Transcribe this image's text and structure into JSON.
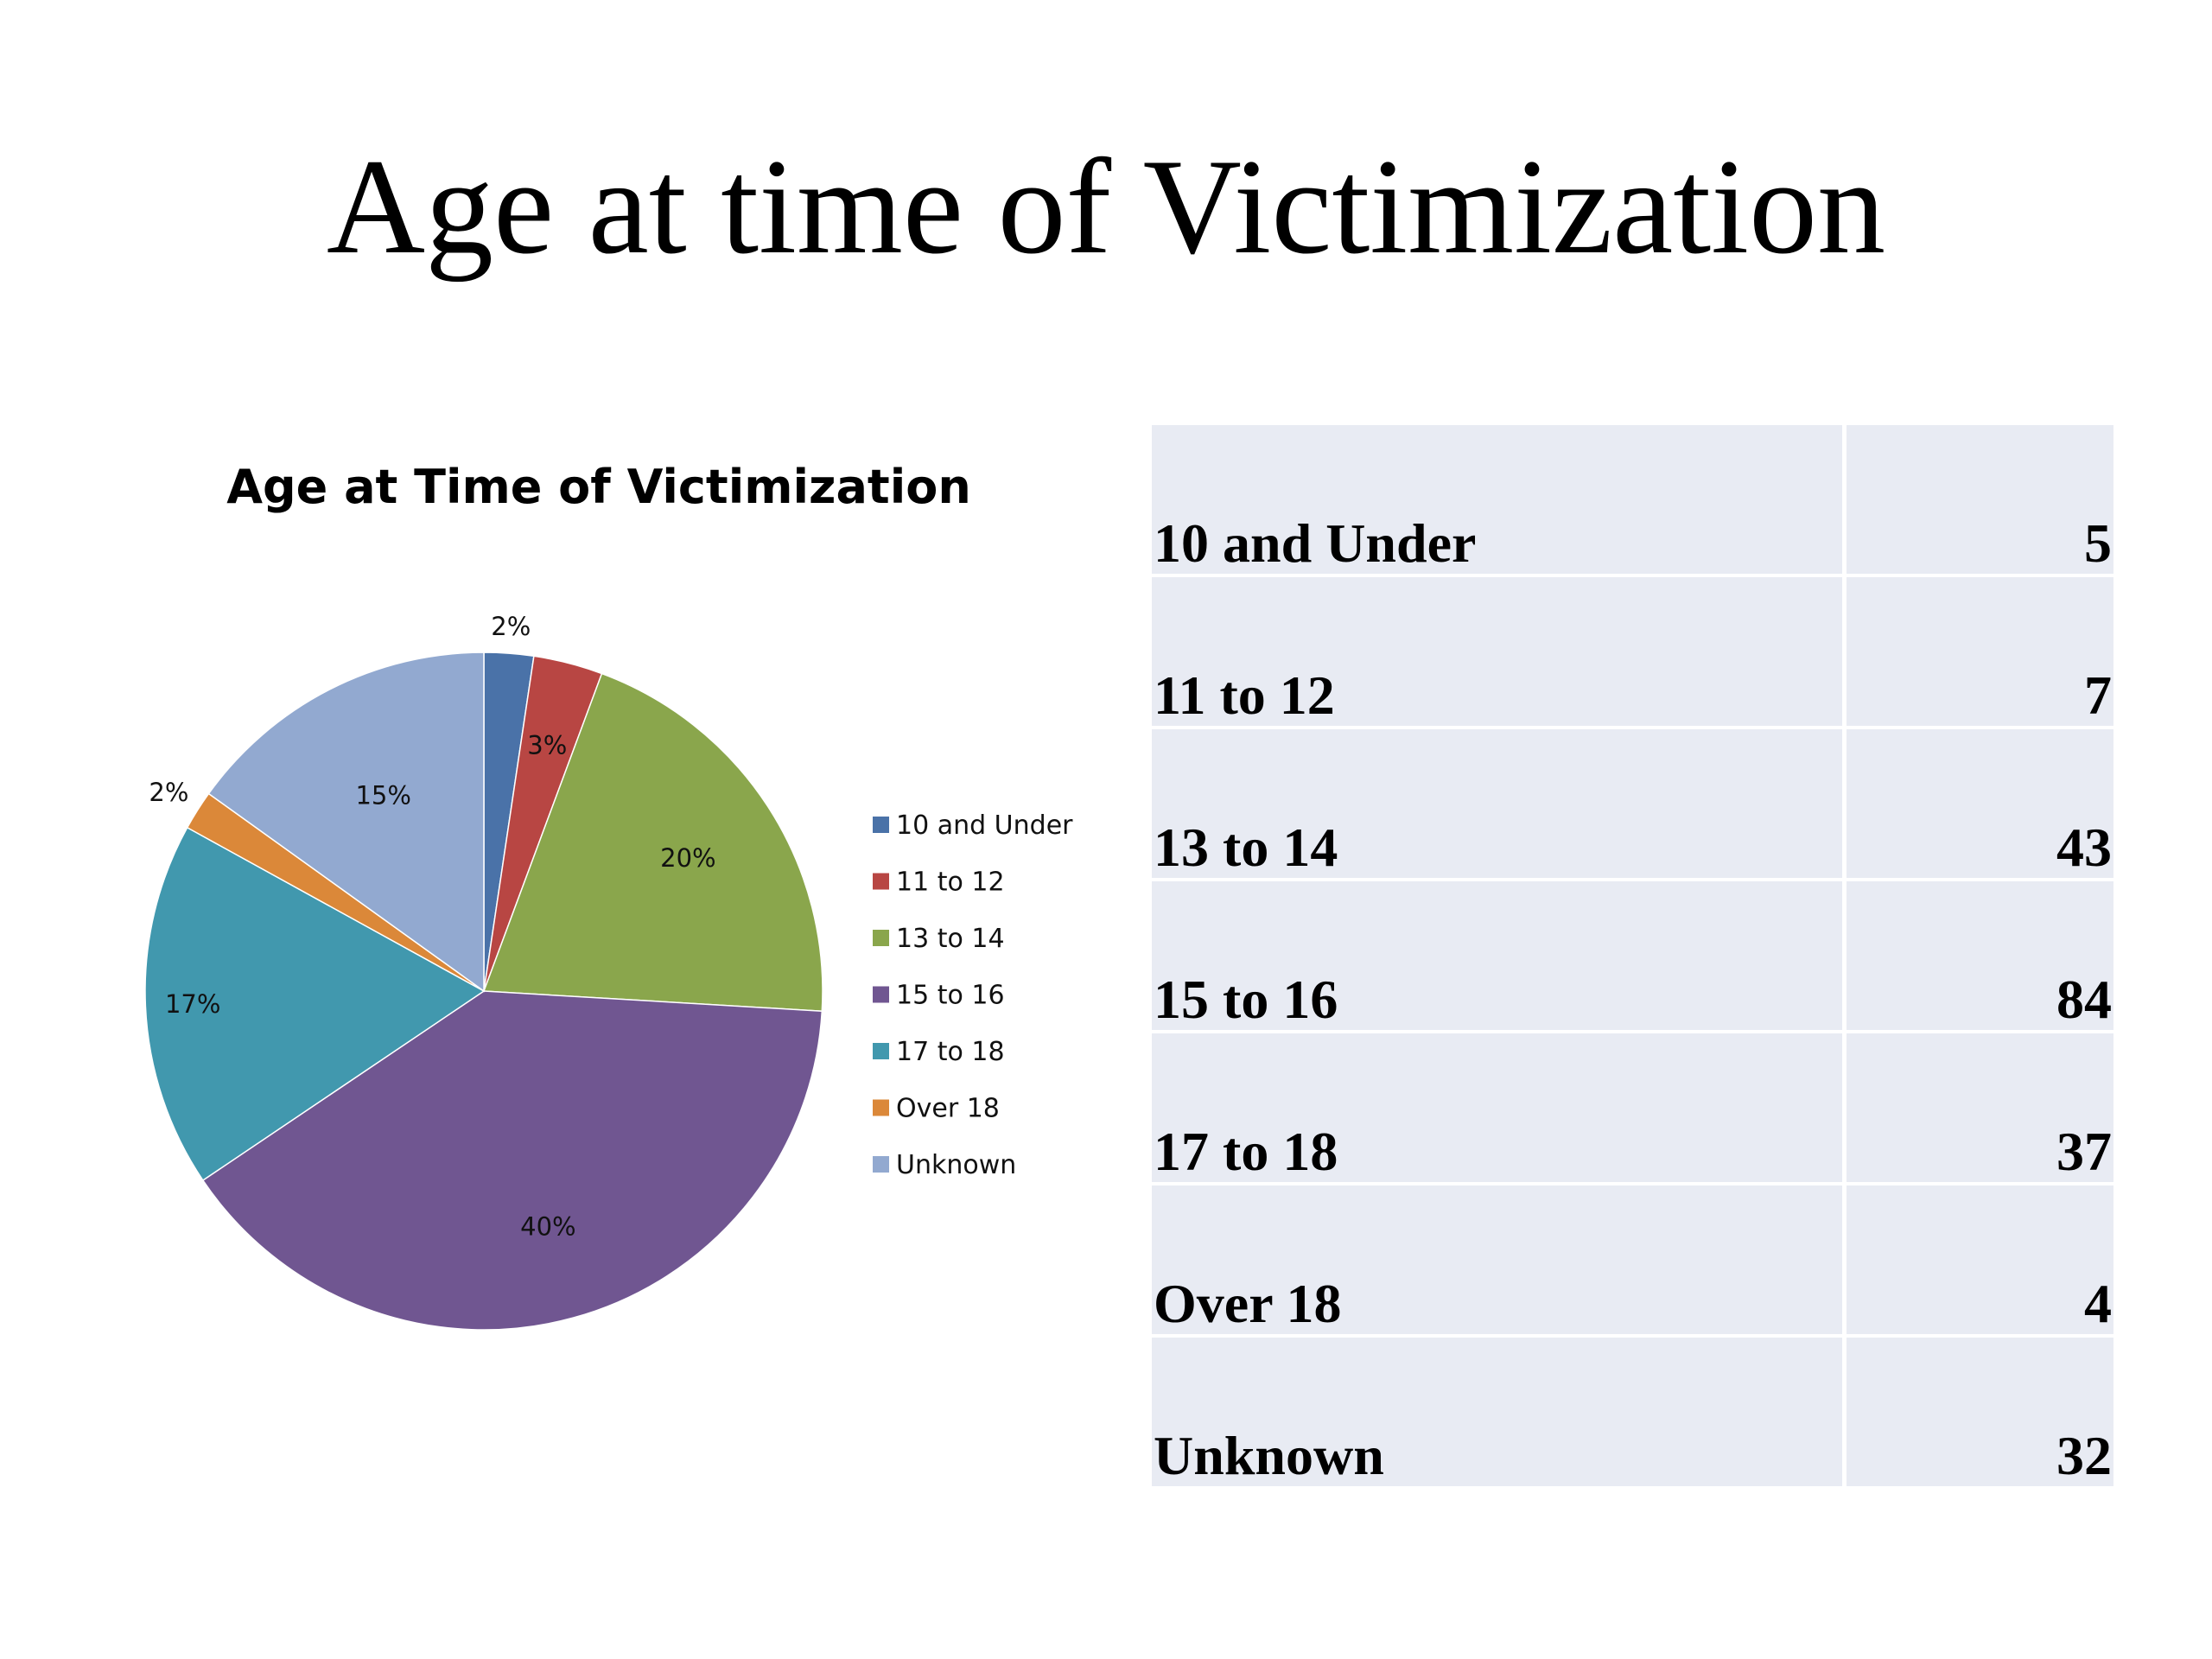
{
  "slide": {
    "title": "Age at time of Victimization"
  },
  "chart_data": {
    "type": "pie",
    "title": "Age at Time of Victimization",
    "legend_position": "right",
    "categories": [
      "10 and Under",
      "11 to 12",
      "13 to 14",
      "15 to 16",
      "17 to 18",
      "Over 18",
      "Unknown"
    ],
    "values": [
      5,
      7,
      43,
      84,
      37,
      4,
      32
    ],
    "percent_labels": [
      "2%",
      "3%",
      "20%",
      "40%",
      "17%",
      "2%",
      "15%"
    ],
    "colors": [
      "#4a72a8",
      "#b84643",
      "#8aa64c",
      "#705691",
      "#4198ae",
      "#db8839",
      "#92a9d0"
    ]
  },
  "table": {
    "rows": [
      {
        "label": "10 and Under",
        "value": "5"
      },
      {
        "label": "11 to 12",
        "value": "7"
      },
      {
        "label": "13 to 14",
        "value": "43"
      },
      {
        "label": "15 to 16",
        "value": "84"
      },
      {
        "label": "17 to 18",
        "value": "37"
      },
      {
        "label": "Over 18",
        "value": "4"
      },
      {
        "label": "Unknown",
        "value": "32"
      }
    ]
  }
}
